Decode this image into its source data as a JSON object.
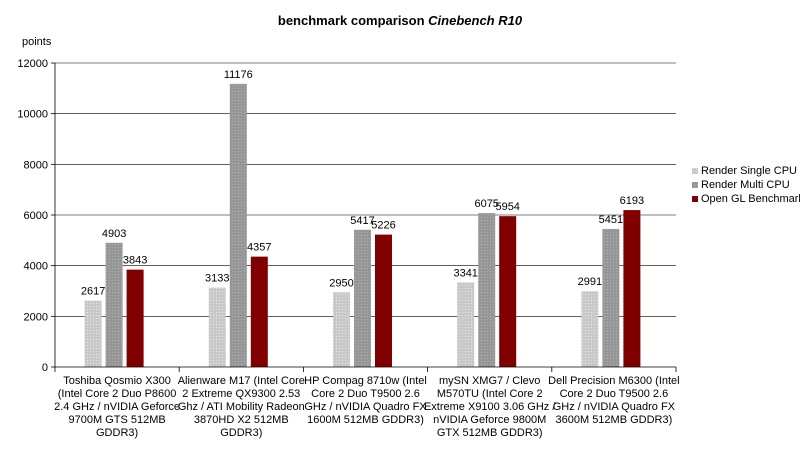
{
  "chart_data": {
    "type": "bar",
    "title": "benchmark comparison",
    "title_italic": "Cinebench R10",
    "ylabel": "points",
    "xlabel": "",
    "ylim": [
      0,
      12000
    ],
    "yticks": [
      "0",
      "2000",
      "4000",
      "6000",
      "8000",
      "10000",
      "12000"
    ],
    "yticks_values": [
      0,
      2000,
      4000,
      6000,
      8000,
      10000,
      12000
    ],
    "grid": true,
    "legend_position": "right",
    "categories": [
      [
        "Toshiba Qosmio X300",
        "(Intel Core 2 Duo P8600",
        "2.4 GHz / nVIDIA Geforce",
        "9700M GTS 512MB",
        "GDDR3)"
      ],
      [
        "Alienware M17 (Intel Core",
        "2 Extreme QX9300 2.53",
        "Ghz / ATI Mobility Radeon",
        "3870HD X2 512MB",
        "GDDR3)"
      ],
      [
        "HP Compag 8710w (Intel",
        "Core 2 Duo T9500 2.6",
        "GHz / nVIDIA Quadro FX",
        "1600M 512MB GDDR3)"
      ],
      [
        "mySN XMG7 / Clevo",
        "M570TU (Intel Core 2",
        "Extreme X9100 3.06 GHz /",
        "nVIDIA Geforce 9800M",
        "GTX 512MB GDDR3)"
      ],
      [
        "Dell Precision M6300 (Intel",
        "Core 2 Duo T9500 2.6",
        "GHz / nVIDIA Quadro FX",
        "3600M 512MB GDDR3)"
      ]
    ],
    "series": [
      {
        "name": "Render Single CPU",
        "color": "#c8c8c8",
        "values": [
          2617,
          3133,
          2950,
          3341,
          2991
        ]
      },
      {
        "name": "Render Multi CPU",
        "color": "#969696",
        "values": [
          4903,
          11176,
          5417,
          6075,
          5451
        ]
      },
      {
        "name": "Open GL Benchmark",
        "color": "#800000",
        "values": [
          3843,
          4357,
          5226,
          5954,
          6193
        ]
      }
    ]
  }
}
